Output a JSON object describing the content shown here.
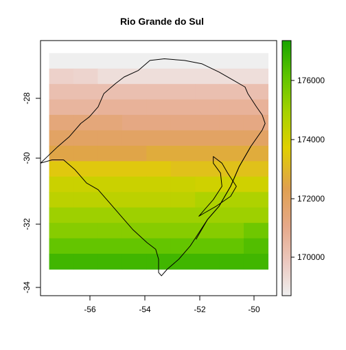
{
  "title": "Rio Grande do Sul",
  "x_ticks": [
    "-56",
    "-54",
    "-52",
    "-50"
  ],
  "y_ticks": [
    "-28",
    "-30",
    "-32",
    "-34"
  ],
  "legend_ticks": [
    "176000",
    "174000",
    "172000",
    "170000"
  ],
  "colors": {
    "palette_low": "#efefef",
    "palette_mid": "#e0c400",
    "palette_high": "#1aa500",
    "outline": "#000000"
  },
  "chart_data": {
    "type": "heatmap",
    "title": "Rio Grande do Sul",
    "xlim": [
      -57.6,
      -49.4
    ],
    "ylim": [
      -34.3,
      -26.6
    ],
    "x_ticks": [
      -56,
      -54,
      -52,
      -50
    ],
    "y_ticks": [
      -28,
      -30,
      -32,
      -34
    ],
    "raster": {
      "x_range": [
        -57.3,
        -49.7
      ],
      "y_range": [
        -33.5,
        -26.98
      ],
      "cols": 9,
      "rows": 14,
      "values_note": "rows top to bottom, cols left to right",
      "values": [
        [
          168800,
          168800,
          168800,
          168800,
          168800,
          168800,
          168800,
          168800,
          168800
        ],
        [
          169700,
          169600,
          169300,
          169300,
          169300,
          169300,
          169300,
          169300,
          169300
        ],
        [
          170300,
          170300,
          170300,
          170300,
          170300,
          170300,
          170300,
          170300,
          170300
        ],
        [
          170700,
          170700,
          170800,
          170800,
          170800,
          170800,
          170800,
          170800,
          170800
        ],
        [
          171500,
          171500,
          171500,
          171300,
          171300,
          171300,
          171300,
          171300,
          171300
        ],
        [
          172000,
          172000,
          172000,
          172000,
          172000,
          172000,
          172000,
          172000,
          172000
        ],
        [
          172600,
          172600,
          172600,
          172600,
          172800,
          172800,
          172800,
          172800,
          172800
        ],
        [
          173600,
          173600,
          173600,
          173600,
          173600,
          173400,
          173400,
          173400,
          173400
        ],
        [
          174300,
          174300,
          174300,
          174300,
          174300,
          174300,
          174200,
          174200,
          174200
        ],
        [
          174600,
          174600,
          174600,
          174600,
          174600,
          174600,
          174900,
          174900,
          174900
        ],
        [
          175200,
          175200,
          175200,
          175200,
          175200,
          175200,
          175200,
          175200,
          175200
        ],
        [
          175600,
          175600,
          175600,
          175600,
          175600,
          175600,
          175600,
          175600,
          176000
        ],
        [
          176200,
          176200,
          176200,
          176200,
          176200,
          176200,
          176200,
          176200,
          176500
        ],
        [
          176800,
          176800,
          176800,
          176800,
          176800,
          176800,
          176800,
          176800,
          176800
        ]
      ]
    },
    "legend": {
      "range": [
        168800,
        177500
      ],
      "ticks": [
        170000,
        172000,
        174000,
        176000
      ]
    },
    "outline": {
      "state": [
        [
          -55.6,
          -28.6
        ],
        [
          -55.4,
          -28.2
        ],
        [
          -55.0,
          -27.9
        ],
        [
          -54.7,
          -27.7
        ],
        [
          -54.2,
          -27.5
        ],
        [
          -53.8,
          -27.2
        ],
        [
          -53.3,
          -27.15
        ],
        [
          -52.6,
          -27.2
        ],
        [
          -52.0,
          -27.3
        ],
        [
          -51.4,
          -27.55
        ],
        [
          -50.9,
          -27.8
        ],
        [
          -50.5,
          -28.0
        ],
        [
          -50.4,
          -28.2
        ],
        [
          -50.1,
          -28.6
        ],
        [
          -49.9,
          -28.85
        ],
        [
          -49.8,
          -29.1
        ],
        [
          -49.9,
          -29.3
        ],
        [
          -50.3,
          -29.8
        ],
        [
          -50.7,
          -30.4
        ],
        [
          -51.0,
          -31.0
        ],
        [
          -51.4,
          -31.6
        ],
        [
          -51.8,
          -32.0
        ],
        [
          -52.1,
          -32.4
        ],
        [
          -52.4,
          -32.8
        ],
        [
          -52.8,
          -33.2
        ],
        [
          -53.2,
          -33.5
        ],
        [
          -53.4,
          -33.7
        ],
        [
          -53.5,
          -33.6
        ],
        [
          -53.5,
          -33.2
        ],
        [
          -53.6,
          -32.9
        ],
        [
          -53.9,
          -32.7
        ],
        [
          -54.4,
          -32.3
        ],
        [
          -54.8,
          -31.9
        ],
        [
          -55.2,
          -31.5
        ],
        [
          -55.6,
          -31.1
        ],
        [
          -56.0,
          -30.9
        ],
        [
          -56.4,
          -30.5
        ],
        [
          -56.8,
          -30.2
        ],
        [
          -57.2,
          -30.2
        ],
        [
          -57.6,
          -30.3
        ],
        [
          -57.3,
          -30.05
        ],
        [
          -57.0,
          -29.8
        ],
        [
          -56.6,
          -29.5
        ],
        [
          -56.2,
          -29.1
        ],
        [
          -55.9,
          -28.9
        ],
        [
          -55.6,
          -28.6
        ]
      ],
      "lagoon": [
        [
          -51.6,
          -30.1
        ],
        [
          -51.3,
          -30.3
        ],
        [
          -51.1,
          -30.6
        ],
        [
          -50.8,
          -31.0
        ],
        [
          -51.0,
          -31.3
        ],
        [
          -51.5,
          -31.6
        ],
        [
          -51.9,
          -31.8
        ],
        [
          -52.1,
          -31.9
        ],
        [
          -51.9,
          -31.7
        ],
        [
          -51.6,
          -31.4
        ],
        [
          -51.3,
          -31.0
        ],
        [
          -51.35,
          -30.6
        ],
        [
          -51.6,
          -30.3
        ],
        [
          -51.6,
          -30.1
        ]
      ],
      "east_coast": [
        [
          -50.3,
          -29.8
        ],
        [
          -50.7,
          -30.4
        ],
        [
          -51.0,
          -31.0
        ],
        [
          -51.4,
          -31.6
        ],
        [
          -51.8,
          -32.0
        ],
        [
          -52.2,
          -32.6
        ]
      ]
    }
  }
}
